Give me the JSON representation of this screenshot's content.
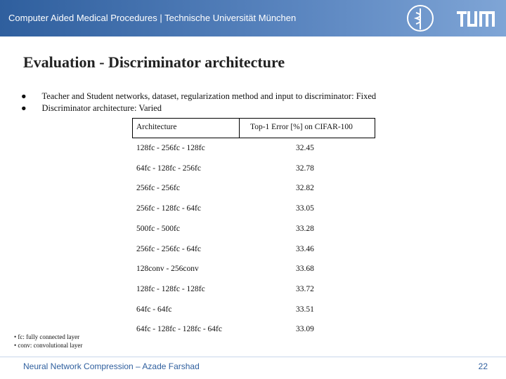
{
  "header": {
    "institution": "Computer Aided Medical Procedures | Technische Universität München"
  },
  "title": "Evaluation - Discriminator architecture",
  "bullets": [
    "Teacher and Student networks, dataset, regularization method and input to discriminator: Fixed",
    "Discriminator architecture: Varied"
  ],
  "table": {
    "columns": [
      "Architecture",
      "Top-1 Error [%] on CIFAR-100"
    ],
    "rows": [
      [
        "128fc - 256fc - 128fc",
        32.45
      ],
      [
        "64fc - 128fc - 256fc",
        32.78
      ],
      [
        "256fc - 256fc",
        32.82
      ],
      [
        "256fc - 128fc - 64fc",
        33.05
      ],
      [
        "500fc - 500fc",
        33.28
      ],
      [
        "256fc - 256fc - 64fc",
        33.46
      ],
      [
        "128conv - 256conv",
        33.68
      ],
      [
        "128fc - 128fc - 128fc",
        33.72
      ],
      [
        "64fc - 64fc",
        33.51
      ],
      [
        "64fc - 128fc - 128fc - 64fc",
        33.09
      ]
    ]
  },
  "footnotes": [
    "fc: fully connected layer",
    "conv: convolutional layer"
  ],
  "footer": {
    "text": "Neural Network Compression – Azade Farshad",
    "page": 22
  }
}
